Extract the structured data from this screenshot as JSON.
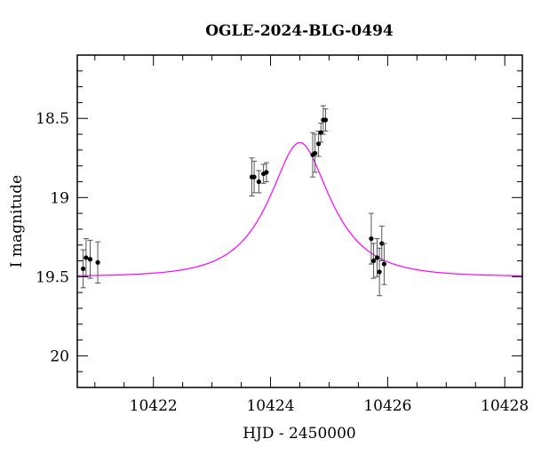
{
  "chart_data": {
    "type": "scatter",
    "title": "OGLE-2024-BLG-0494",
    "xlabel": "HJD - 2450000",
    "ylabel": "I magnitude",
    "xlim": [
      10420.7,
      10428.3
    ],
    "ylim": [
      20.2,
      18.1
    ],
    "y_inverted": true,
    "x_ticks": [
      10422,
      10424,
      10426,
      10428
    ],
    "x_tick_labels": [
      "10422",
      "10424",
      "10426",
      "10428"
    ],
    "y_ticks": [
      18.5,
      19,
      19.5,
      20
    ],
    "y_tick_labels": [
      "18.5",
      "19",
      "19.5",
      "20"
    ],
    "grid": false,
    "colors": {
      "model": "#ff00ff",
      "points": "#000000",
      "errorbars": "#555555"
    },
    "series": [
      {
        "type": "scatter",
        "points": [
          {
            "x": 10420.8,
            "y": 19.45,
            "err": 0.12
          },
          {
            "x": 10420.85,
            "y": 19.38,
            "err": 0.12
          },
          {
            "x": 10420.92,
            "y": 19.39,
            "err": 0.12
          },
          {
            "x": 10421.05,
            "y": 19.41,
            "err": 0.13
          },
          {
            "x": 10423.68,
            "y": 18.87,
            "err": 0.12
          },
          {
            "x": 10423.72,
            "y": 18.87,
            "err": 0.1
          },
          {
            "x": 10423.8,
            "y": 18.9,
            "err": 0.07
          },
          {
            "x": 10423.88,
            "y": 18.85,
            "err": 0.06
          },
          {
            "x": 10423.93,
            "y": 18.84,
            "err": 0.06
          },
          {
            "x": 10424.72,
            "y": 18.73,
            "err": 0.14
          },
          {
            "x": 10424.76,
            "y": 18.72,
            "err": 0.12
          },
          {
            "x": 10424.82,
            "y": 18.66,
            "err": 0.08
          },
          {
            "x": 10424.86,
            "y": 18.59,
            "err": 0.06
          },
          {
            "x": 10424.9,
            "y": 18.51,
            "err": 0.09
          },
          {
            "x": 10424.94,
            "y": 18.51,
            "err": 0.07
          },
          {
            "x": 10425.72,
            "y": 19.26,
            "err": 0.16
          },
          {
            "x": 10425.76,
            "y": 19.4,
            "err": 0.11
          },
          {
            "x": 10425.82,
            "y": 19.38,
            "err": 0.12
          },
          {
            "x": 10425.86,
            "y": 19.47,
            "err": 0.15
          },
          {
            "x": 10425.9,
            "y": 19.29,
            "err": 0.11
          },
          {
            "x": 10425.94,
            "y": 19.42,
            "err": 0.13
          }
        ]
      },
      {
        "type": "line",
        "model": {
          "t0": 10424.5,
          "tE": 0.9,
          "u0": 0.5,
          "I_base": 19.5,
          "fs": 1.0
        }
      }
    ]
  }
}
